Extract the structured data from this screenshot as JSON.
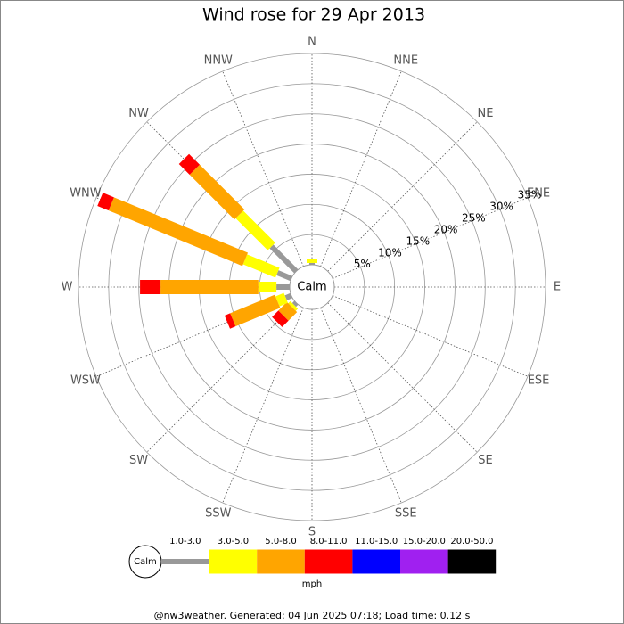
{
  "chart_data": {
    "type": "windrose",
    "title": "Wind rose for 29 Apr 2013",
    "directions": [
      "N",
      "NNE",
      "NE",
      "ENE",
      "E",
      "ESE",
      "SE",
      "SSE",
      "S",
      "SSW",
      "SW",
      "WSW",
      "W",
      "WNW",
      "NW",
      "NNW"
    ],
    "center_label": "Calm",
    "rlim": [
      0,
      35
    ],
    "rticks": [
      {
        "value": 5,
        "label": "5%"
      },
      {
        "value": 10,
        "label": "10%"
      },
      {
        "value": 15,
        "label": "15%"
      },
      {
        "value": 20,
        "label": "20%"
      },
      {
        "value": 25,
        "label": "25%"
      },
      {
        "value": 30,
        "label": "30%"
      },
      {
        "value": 35,
        "label": "35%"
      }
    ],
    "series": [
      {
        "name": "1.0-3.0",
        "color": "#999999",
        "values": [
          0.3,
          0,
          0,
          0,
          0,
          0,
          0,
          0,
          0,
          0,
          0.5,
          1,
          2.2,
          2.5,
          5.8,
          0
        ]
      },
      {
        "name": "3.0-5.0",
        "color": "#ffff00",
        "values": [
          0.7,
          0,
          0,
          0,
          0,
          0,
          0,
          0,
          0,
          0,
          0.5,
          1.5,
          3,
          5.8,
          7.5,
          0
        ]
      },
      {
        "name": "5.0-8.0",
        "color": "#ffa500",
        "values": [
          0,
          0,
          0,
          0,
          0,
          0,
          0,
          0,
          0,
          0,
          2,
          8,
          16.2,
          24,
          10.5,
          0
        ]
      },
      {
        "name": "8.0-11.0",
        "color": "#ff0000",
        "values": [
          0,
          0,
          0,
          0,
          0,
          0,
          0,
          0,
          0,
          0,
          1.5,
          1,
          3.4,
          2,
          2.5,
          0
        ]
      },
      {
        "name": "11.0-15.0",
        "color": "#0000ff",
        "values": [
          0,
          0,
          0,
          0,
          0,
          0,
          0,
          0,
          0,
          0,
          0,
          0,
          0,
          0,
          0,
          0
        ]
      },
      {
        "name": "15.0-20.0",
        "color": "#a020f0",
        "values": [
          0,
          0,
          0,
          0,
          0,
          0,
          0,
          0,
          0,
          0,
          0,
          0,
          0,
          0,
          0,
          0
        ]
      },
      {
        "name": "20.0-50.0",
        "color": "#000000",
        "values": [
          0,
          0,
          0,
          0,
          0,
          0,
          0,
          0,
          0,
          0,
          0,
          0,
          0,
          0,
          0,
          0
        ]
      }
    ],
    "legend_unit": "mph",
    "footer": "@nw3weather. Generated: 04 Jun 2025 07:18; Load time: 0.12 s"
  }
}
